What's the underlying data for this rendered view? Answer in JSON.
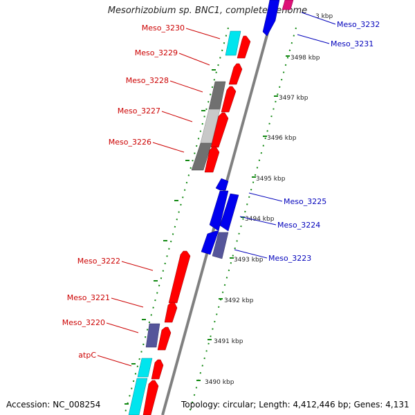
{
  "title": "Mesorhizobium sp. BNC1, complete genome",
  "footer": {
    "accession": "Accession: NC_008254",
    "topology": "Topology: circular; Length: 4,412,446 bp; Genes: 4,131"
  },
  "colors": {
    "forward_gene": "#ff0000",
    "reverse_gene": "#0000ff",
    "slate_gene": "#55559a",
    "cyan_gene": "#00e5ee",
    "gray_gene": "#808080",
    "lightgray_gene": "#c0c0c0",
    "magenta_gene": "#dd1177",
    "backbone": "#808080",
    "forward_label": "#cc0000",
    "reverse_label": "#0000bb",
    "ruler": "#118811"
  },
  "scale": {
    "unit": "kbp",
    "ticks": [
      {
        "label": "3490 kbp"
      },
      {
        "label": "3491 kbp"
      },
      {
        "label": "3492 kbp"
      },
      {
        "label": "3493 kbp"
      },
      {
        "label": "3494 kbp"
      },
      {
        "label": "3495 kbp"
      },
      {
        "label": "3496 kbp"
      },
      {
        "label": "3497 kbp"
      },
      {
        "label": "3498 kbp"
      },
      {
        "label": "3 kbp"
      }
    ]
  },
  "gene_labels": {
    "forward": [
      "Meso_3230",
      "Meso_3229",
      "Meso_3228",
      "Meso_3227",
      "Meso_3226",
      "Meso_3222",
      "Meso_3221",
      "Meso_3220",
      "atpC"
    ],
    "reverse": [
      "Meso_3232",
      "Meso_3231",
      "Meso_3225",
      "Meso_3224",
      "Meso_3223"
    ]
  }
}
